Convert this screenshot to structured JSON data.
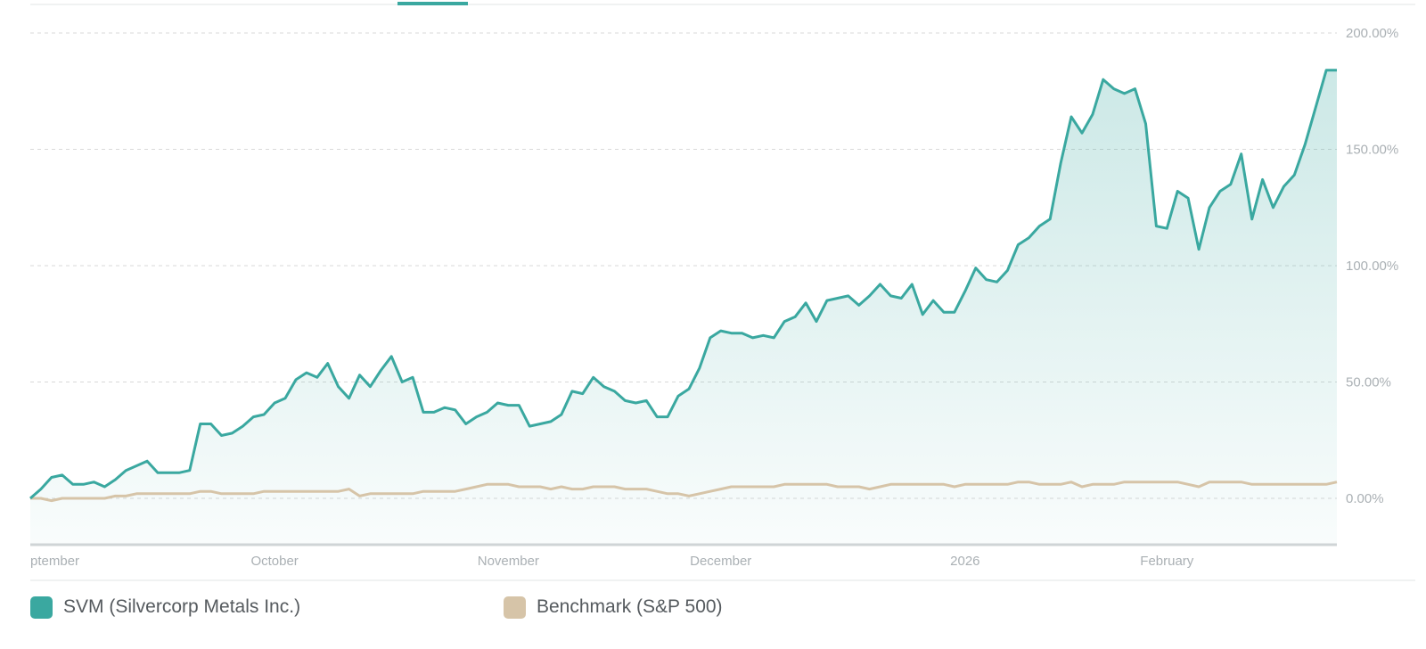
{
  "colors": {
    "primary": "#3aa8a0",
    "benchmark": "#d6c4a8",
    "grid": "#d9d9d9",
    "axis_text": "#aab0b4",
    "legend_text": "#555a5e"
  },
  "chart_data": {
    "type": "area",
    "title": "",
    "xlabel": "",
    "ylabel": "",
    "y_unit": "%",
    "ylim": [
      -20,
      200
    ],
    "yticks": [
      {
        "value": 200,
        "label": "200.00%"
      },
      {
        "value": 150,
        "label": "150.00%"
      },
      {
        "value": 100,
        "label": "100.00%"
      },
      {
        "value": 50,
        "label": "50.00%"
      },
      {
        "value": 0,
        "label": "0.00%"
      }
    ],
    "xticks": [
      {
        "index": 0,
        "label": "ptember"
      },
      {
        "index": 23,
        "label": "October"
      },
      {
        "index": 45,
        "label": "November"
      },
      {
        "index": 65,
        "label": "December"
      },
      {
        "index": 88,
        "label": "2026"
      },
      {
        "index": 107,
        "label": "February"
      }
    ],
    "grid": true,
    "legend_position": "bottom-left",
    "series": [
      {
        "name": "SVM (Silvercorp Metals Inc.)",
        "color": "#3aa8a0",
        "fill": true,
        "values": [
          0,
          4,
          9,
          10,
          6,
          6,
          7,
          5,
          8,
          12,
          14,
          16,
          11,
          11,
          11,
          12,
          32,
          32,
          27,
          28,
          31,
          35,
          36,
          41,
          43,
          51,
          54,
          52,
          58,
          48,
          43,
          53,
          48,
          55,
          61,
          50,
          52,
          37,
          37,
          39,
          38,
          32,
          35,
          37,
          41,
          40,
          40,
          31,
          32,
          33,
          36,
          46,
          45,
          52,
          48,
          46,
          42,
          41,
          42,
          35,
          35,
          44,
          47,
          56,
          69,
          72,
          71,
          71,
          69,
          70,
          69,
          76,
          78,
          84,
          76,
          85,
          86,
          87,
          83,
          87,
          92,
          87,
          86,
          92,
          79,
          85,
          80,
          80,
          89,
          99,
          94,
          93,
          98,
          109,
          112,
          117,
          120,
          144,
          164,
          157,
          165,
          180,
          176,
          174,
          176,
          161,
          117,
          116,
          132,
          129,
          107,
          125,
          132,
          135,
          148,
          120,
          137,
          125,
          134,
          139,
          152,
          168,
          184,
          184
        ],
        "end_value": 184
      },
      {
        "name": "Benchmark (S&P 500)",
        "color": "#d6c4a8",
        "fill": false,
        "values": [
          0,
          0,
          -1,
          0,
          0,
          0,
          0,
          0,
          1,
          1,
          2,
          2,
          2,
          2,
          2,
          2,
          3,
          3,
          2,
          2,
          2,
          2,
          3,
          3,
          3,
          3,
          3,
          3,
          3,
          3,
          4,
          1,
          2,
          2,
          2,
          2,
          2,
          3,
          3,
          3,
          3,
          4,
          5,
          6,
          6,
          6,
          5,
          5,
          5,
          4,
          5,
          4,
          4,
          5,
          5,
          5,
          4,
          4,
          4,
          3,
          2,
          2,
          1,
          2,
          3,
          4,
          5,
          5,
          5,
          5,
          5,
          6,
          6,
          6,
          6,
          6,
          5,
          5,
          5,
          4,
          5,
          6,
          6,
          6,
          6,
          6,
          6,
          5,
          6,
          6,
          6,
          6,
          6,
          7,
          7,
          6,
          6,
          6,
          7,
          5,
          6,
          6,
          6,
          7,
          7,
          7,
          7,
          7,
          7,
          6,
          5,
          7,
          7,
          7,
          7,
          6,
          6,
          6,
          6,
          6,
          6,
          6,
          6,
          7
        ],
        "end_value": 7
      }
    ]
  },
  "legend": {
    "items": [
      {
        "label": "SVM (Silvercorp Metals Inc.)",
        "color": "#3aa8a0"
      },
      {
        "label": "Benchmark (S&P 500)",
        "color": "#d6c4a8"
      }
    ]
  }
}
